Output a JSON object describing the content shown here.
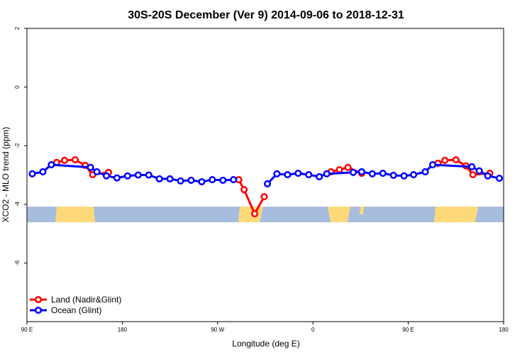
{
  "chart_data": {
    "type": "line",
    "title": "30S-20S December (Ver 9)   2014-09-06 to 2018-12-31",
    "xlabel": "Longitude (deg E)",
    "ylabel": "XCO2 - MLO trend (ppm)",
    "xlim": [
      90,
      540
    ],
    "ylim": [
      -8,
      2
    ],
    "xticks": [
      {
        "value": 90,
        "label": "90 E"
      },
      180,
      {
        "value": 270,
        "label": "90 W"
      },
      {
        "value": 360,
        "label": "0"
      },
      {
        "value": 450,
        "label": "90 E"
      },
      {
        "value": 540,
        "label": "180"
      }
    ],
    "yticks": [
      -6,
      -4,
      -2,
      0,
      2
    ],
    "legend": "bottomleft",
    "series": [
      {
        "name": "Land (Nadir&Glint)",
        "color": "#ff0000",
        "x": [
          118,
          125.5,
          135.5,
          145,
          152,
          167,
          230,
          290,
          295,
          305,
          314,
          345,
          377,
          385,
          393,
          406,
          440,
          478,
          484.5,
          495,
          504.5,
          511,
          527
        ],
        "values": [
          -2.57,
          -2.5,
          -2.48,
          -2.67,
          -2.99,
          -2.91,
          null,
          -3.16,
          -3.5,
          -4.32,
          -3.74,
          null,
          -2.89,
          -2.82,
          -2.74,
          -2.94,
          null,
          -2.6,
          -2.5,
          -2.48,
          -2.69,
          -2.99,
          -2.94
        ]
      },
      {
        "name": "Ocean (Glint)",
        "color": "#0000ff",
        "x": [
          95,
          105,
          113,
          150,
          156,
          165,
          175,
          185,
          195,
          205,
          215,
          225,
          235,
          245,
          255,
          265,
          275,
          285,
          300,
          317,
          326,
          336,
          346,
          356,
          366,
          373,
          398,
          406,
          416,
          426,
          436,
          446,
          455,
          466,
          473,
          510,
          517,
          525,
          536
        ],
        "values": [
          -2.96,
          -2.89,
          -2.65,
          -2.74,
          -2.89,
          -3.03,
          -3.1,
          -3.03,
          -3.0,
          -3.0,
          -3.13,
          -3.13,
          -3.2,
          -3.18,
          -3.23,
          -3.16,
          -3.18,
          -3.16,
          null,
          -3.3,
          -2.96,
          -2.99,
          -2.94,
          -2.99,
          -3.06,
          -2.96,
          -2.91,
          -2.89,
          -2.96,
          -2.94,
          -3.01,
          -3.03,
          -2.99,
          -2.89,
          -2.65,
          -2.72,
          -2.86,
          -3.03,
          -3.11
        ]
      }
    ]
  }
}
